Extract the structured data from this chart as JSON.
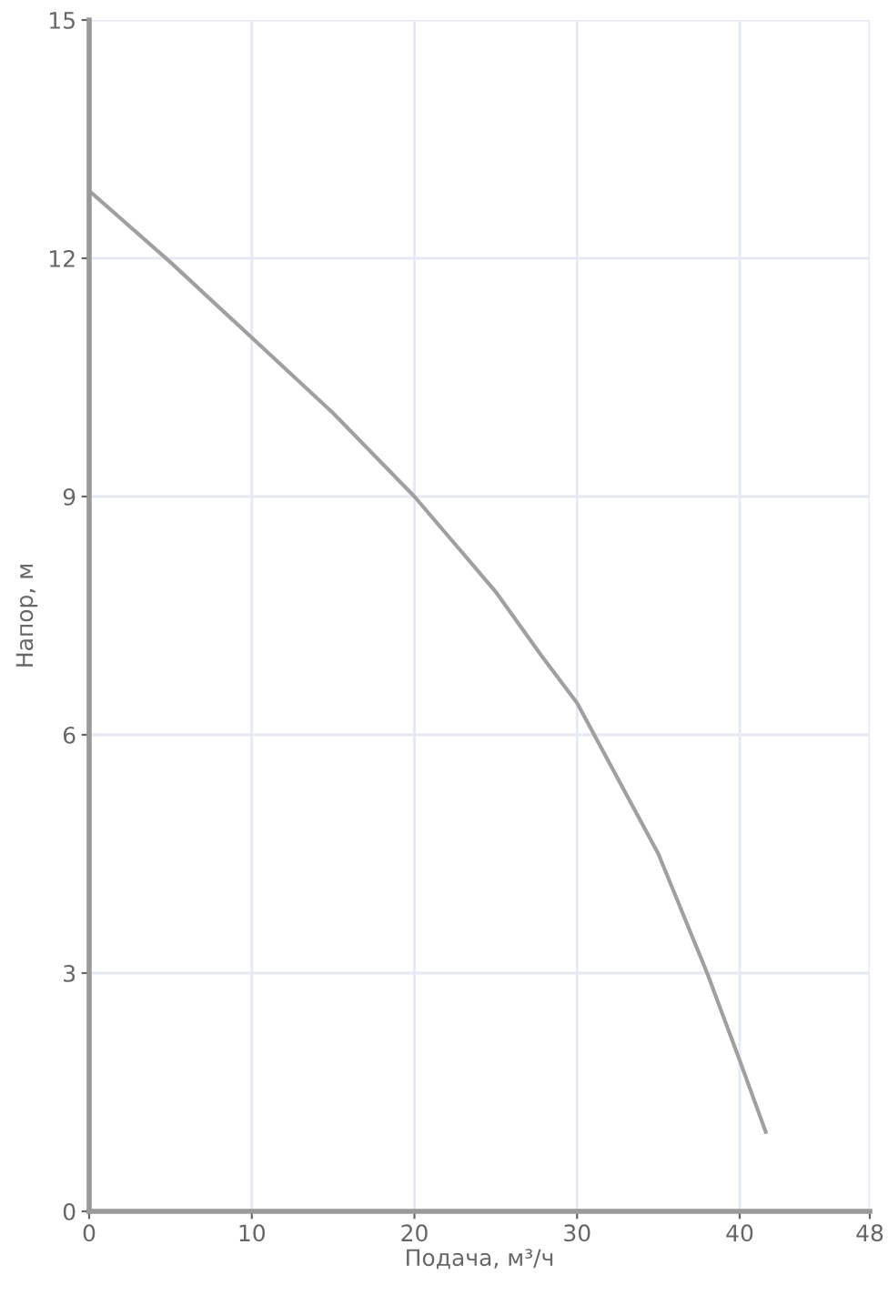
{
  "chart_data": {
    "type": "line",
    "xlabel": "Подача, м³/ч",
    "ylabel": "Напор, м",
    "x": [
      0,
      5,
      10,
      15,
      20,
      25,
      27.8,
      30,
      35,
      38,
      40,
      41.6
    ],
    "series": [
      {
        "color": "#a0a0a0",
        "values": [
          12.85,
          11.95,
          11.0,
          10.05,
          9.0,
          7.8,
          7.0,
          6.4,
          4.5,
          3.0,
          1.9,
          1.0
        ]
      }
    ],
    "xlim": [
      0,
      48
    ],
    "xticks": [
      0,
      10,
      20,
      30,
      40,
      48
    ],
    "ylim": [
      0,
      15
    ],
    "yticks": [
      0,
      3,
      6,
      9,
      12,
      15
    ],
    "grid": true,
    "marker": "none",
    "line_style": "solid"
  }
}
